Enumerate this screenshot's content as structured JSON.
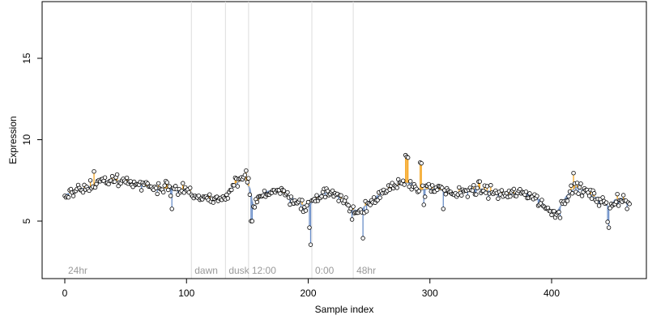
{
  "chart_data": {
    "type": "scatter",
    "title": "",
    "xlabel": "Sample index",
    "ylabel": "Expression",
    "xlim": [
      -10,
      478
    ],
    "ylim": [
      1.6,
      18.5
    ],
    "x_ticks": [
      0,
      100,
      200,
      300,
      400
    ],
    "y_ticks": [
      5,
      10,
      15
    ],
    "grid": false,
    "legend": "none",
    "colors": {
      "points_fill": "#ffffff",
      "points_stroke": "#000000",
      "line_up": "#f5a623",
      "line_down": "#6b8fc9",
      "fit": "#9ab0d0",
      "vlines": "#dddddd",
      "annotation_text": "#9a9a9a"
    },
    "annotations": [
      {
        "x": 0,
        "label": "24hr"
      },
      {
        "x": 104,
        "label": "dawn"
      },
      {
        "x": 132,
        "label": "dusk"
      },
      {
        "x": 151,
        "label": "12:00"
      },
      {
        "x": 203,
        "label": "0:00"
      },
      {
        "x": 237,
        "label": "48hr"
      }
    ],
    "vlines_x": [
      104,
      132,
      151,
      203,
      237
    ],
    "anchors": [
      [
        0,
        6.6
      ],
      [
        10,
        6.9
      ],
      [
        20,
        7.1
      ],
      [
        30,
        7.4
      ],
      [
        40,
        7.5
      ],
      [
        50,
        7.4
      ],
      [
        60,
        7.2
      ],
      [
        70,
        7.1
      ],
      [
        80,
        7.0
      ],
      [
        90,
        7.0
      ],
      [
        100,
        6.9
      ],
      [
        105,
        6.5
      ],
      [
        115,
        6.4
      ],
      [
        125,
        6.4
      ],
      [
        133,
        6.5
      ],
      [
        140,
        7.3
      ],
      [
        148,
        7.6
      ],
      [
        152,
        7.0
      ],
      [
        155,
        5.8
      ],
      [
        160,
        6.4
      ],
      [
        165,
        6.8
      ],
      [
        175,
        6.9
      ],
      [
        185,
        6.5
      ],
      [
        195,
        6.0
      ],
      [
        200,
        5.9
      ],
      [
        205,
        6.3
      ],
      [
        212,
        6.7
      ],
      [
        220,
        6.8
      ],
      [
        230,
        6.2
      ],
      [
        236,
        5.7
      ],
      [
        243,
        5.6
      ],
      [
        250,
        6.2
      ],
      [
        260,
        6.7
      ],
      [
        270,
        7.0
      ],
      [
        278,
        7.4
      ],
      [
        285,
        7.3
      ],
      [
        292,
        6.9
      ],
      [
        300,
        7.0
      ],
      [
        310,
        6.9
      ],
      [
        320,
        6.6
      ],
      [
        330,
        6.9
      ],
      [
        340,
        7.0
      ],
      [
        350,
        6.8
      ],
      [
        360,
        6.6
      ],
      [
        370,
        6.7
      ],
      [
        380,
        6.7
      ],
      [
        390,
        6.3
      ],
      [
        398,
        5.6
      ],
      [
        405,
        5.6
      ],
      [
        412,
        6.5
      ],
      [
        420,
        7.1
      ],
      [
        428,
        6.8
      ],
      [
        435,
        6.5
      ],
      [
        442,
        6.2
      ],
      [
        448,
        5.8
      ],
      [
        452,
        6.3
      ],
      [
        458,
        6.4
      ],
      [
        463,
        6.0
      ]
    ],
    "outliers": [
      [
        24,
        8.05
      ],
      [
        88,
        5.75
      ],
      [
        149,
        8.1
      ],
      [
        153,
        5.0
      ],
      [
        154,
        5.0
      ],
      [
        181,
        6.6
      ],
      [
        194,
        5.75
      ],
      [
        201,
        4.6
      ],
      [
        202,
        3.55
      ],
      [
        236,
        5.1
      ],
      [
        245,
        3.95
      ],
      [
        248,
        5.6
      ],
      [
        280,
        9.05
      ],
      [
        281,
        8.95
      ],
      [
        282,
        8.9
      ],
      [
        292,
        8.6
      ],
      [
        293,
        8.55
      ],
      [
        295,
        6.0
      ],
      [
        311,
        5.75
      ],
      [
        389,
        5.95
      ],
      [
        407,
        5.2
      ],
      [
        418,
        7.95
      ],
      [
        446,
        4.95
      ],
      [
        447,
        4.6
      ]
    ],
    "n_points": 465,
    "seed": 4711
  }
}
